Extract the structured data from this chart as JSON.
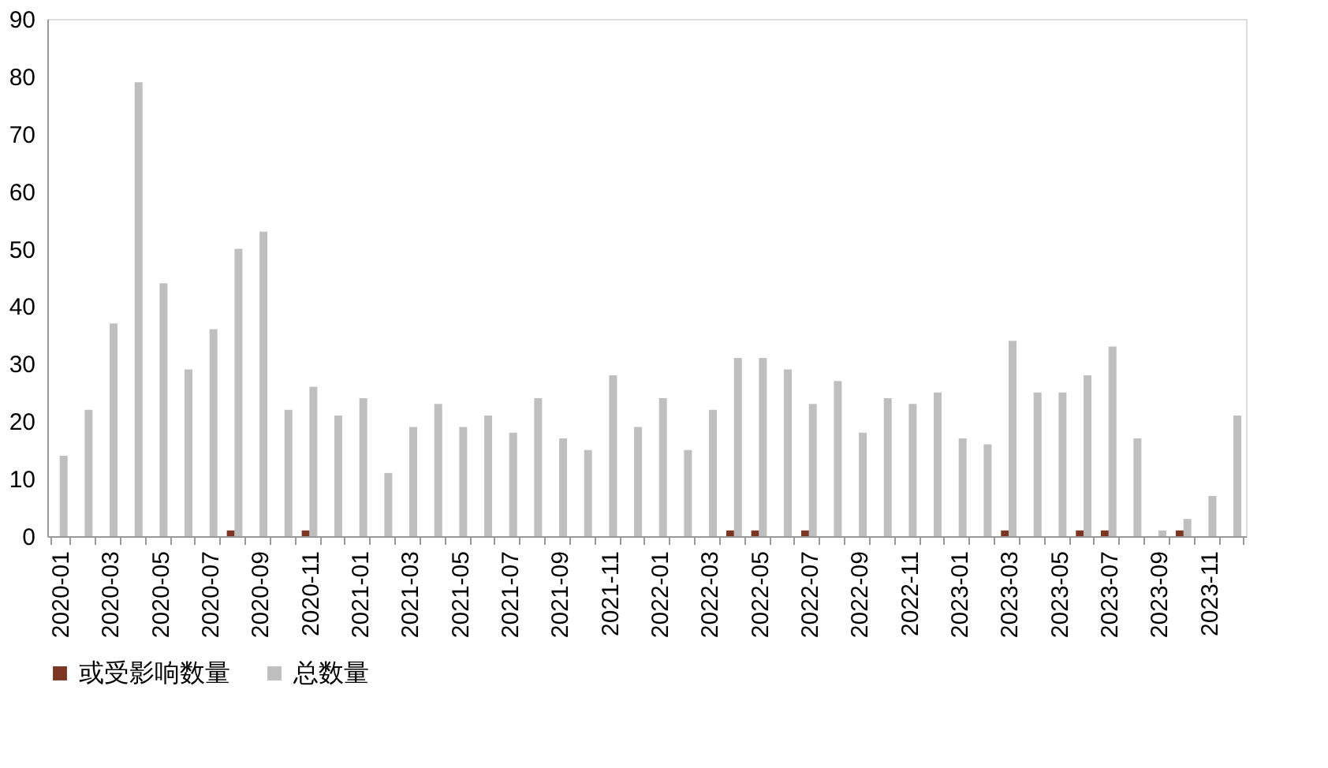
{
  "chart_data": {
    "type": "bar",
    "categories": [
      "2020-01",
      null,
      "2020-03",
      null,
      "2020-05",
      null,
      "2020-07",
      null,
      "2020-09",
      null,
      "2020-11",
      null,
      "2021-01",
      null,
      "2021-03",
      null,
      "2021-05",
      null,
      "2021-07",
      null,
      "2021-09",
      null,
      "2021-11",
      null,
      "2022-01",
      null,
      "2022-03",
      null,
      "2022-05",
      null,
      "2022-07",
      null,
      "2022-09",
      null,
      "2022-11",
      null,
      "2023-01",
      null,
      "2023-03",
      null,
      "2023-05",
      null,
      "2023-07",
      null,
      "2023-09",
      null,
      "2023-11",
      null
    ],
    "series": [
      {
        "name": "或受影响数量",
        "color": "#7b3522",
        "values": [
          0,
          0,
          0,
          0,
          0,
          0,
          0,
          1,
          0,
          0,
          1,
          0,
          0,
          0,
          0,
          0,
          0,
          0,
          0,
          0,
          0,
          0,
          0,
          0,
          0,
          0,
          0,
          1,
          1,
          0,
          1,
          0,
          0,
          0,
          0,
          0,
          0,
          0,
          1,
          0,
          0,
          1,
          1,
          0,
          0,
          1,
          0,
          0
        ]
      },
      {
        "name": "总数量",
        "color": "#bfbfbf",
        "values": [
          14,
          22,
          37,
          79,
          44,
          29,
          36,
          50,
          53,
          22,
          26,
          21,
          24,
          11,
          19,
          23,
          19,
          21,
          18,
          24,
          17,
          15,
          28,
          19,
          24,
          15,
          22,
          31,
          31,
          29,
          23,
          27,
          18,
          24,
          23,
          25,
          17,
          16,
          34,
          25,
          25,
          28,
          33,
          17,
          1,
          3,
          7,
          21
        ]
      }
    ],
    "ylim": [
      0,
      90
    ],
    "yticks": [
      0,
      10,
      20,
      30,
      40,
      50,
      60,
      70,
      80,
      90
    ],
    "grid": false,
    "legend": "bottom"
  }
}
